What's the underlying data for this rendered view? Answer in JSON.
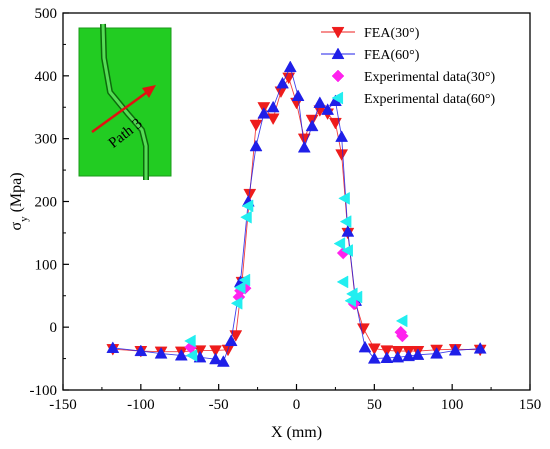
{
  "chart_data": {
    "type": "scatter",
    "title": "",
    "xlabel": "X (mm)",
    "ylabel": "σ",
    "ylabel_subscript": "y",
    "ylabel_unit": "(Mpa)",
    "xlim": [
      -150,
      150
    ],
    "ylim": [
      -100,
      500
    ],
    "xticks": [
      -150,
      -100,
      -50,
      0,
      50,
      100,
      150
    ],
    "yticks": [
      -100,
      0,
      100,
      200,
      300,
      400,
      500
    ],
    "grid": false,
    "legend_position": "top-right",
    "inset": {
      "label": "Path 3",
      "colors": {
        "plate": "#22cc22",
        "weld": "#4cd84c",
        "arrow": "#e11111"
      }
    },
    "series": [
      {
        "name": "FEA(30°)",
        "marker": "triangle-down",
        "color": "#ee1c1c",
        "line": true,
        "x": [
          -118,
          -100,
          -87,
          -74,
          -62,
          -52,
          -44,
          -39,
          -35,
          -30,
          -26,
          -21,
          -15,
          -10,
          -5,
          0,
          5,
          10,
          15,
          20,
          25,
          29,
          33,
          38,
          43,
          50,
          58,
          65,
          72,
          78,
          90,
          102,
          118
        ],
        "y": [
          -35,
          -38,
          -39,
          -39,
          -37,
          -37,
          -36,
          -13,
          72,
          212,
          322,
          350,
          332,
          375,
          397,
          357,
          300,
          330,
          345,
          340,
          325,
          275,
          150,
          38,
          -2,
          -34,
          -37,
          -38,
          -38,
          -38,
          -36,
          -35,
          -36
        ]
      },
      {
        "name": "FEA(60°)",
        "marker": "triangle-up",
        "color": "#1f1fe8",
        "line": true,
        "x": [
          -118,
          -100,
          -87,
          -74,
          -62,
          -52,
          -47,
          -42,
          -36,
          -31,
          -26,
          -21,
          -15,
          -9,
          -4,
          1,
          5,
          10,
          15,
          20,
          25,
          29,
          33,
          38,
          44,
          50,
          58,
          65,
          72,
          78,
          90,
          102,
          118
        ],
        "y": [
          -33,
          -38,
          -42,
          -45,
          -48,
          -51,
          -55,
          -22,
          72,
          200,
          288,
          340,
          350,
          388,
          414,
          368,
          286,
          320,
          357,
          346,
          360,
          303,
          152,
          42,
          -32,
          -50,
          -49,
          -48,
          -46,
          -44,
          -42,
          -37,
          -34
        ]
      },
      {
        "name": "Experimental data(30°)",
        "marker": "diamond",
        "color": "#ff22ee",
        "line": false,
        "x": [
          -68,
          -37,
          -36,
          -33,
          30,
          37,
          67,
          68
        ],
        "y": [
          -32,
          48,
          58,
          62,
          118,
          37,
          -8,
          -14
        ]
      },
      {
        "name": "Experimental data(60°)",
        "marker": "triangle-left",
        "color": "#22eef0",
        "line": false,
        "x": [
          -68,
          -67,
          -38,
          -36,
          -33,
          -32,
          -31,
          28,
          30,
          31,
          32,
          33,
          35,
          36,
          39,
          68
        ],
        "y": [
          -22,
          -45,
          38,
          63,
          75,
          175,
          193,
          133,
          72,
          205,
          168,
          122,
          42,
          53,
          48,
          10
        ]
      }
    ]
  }
}
